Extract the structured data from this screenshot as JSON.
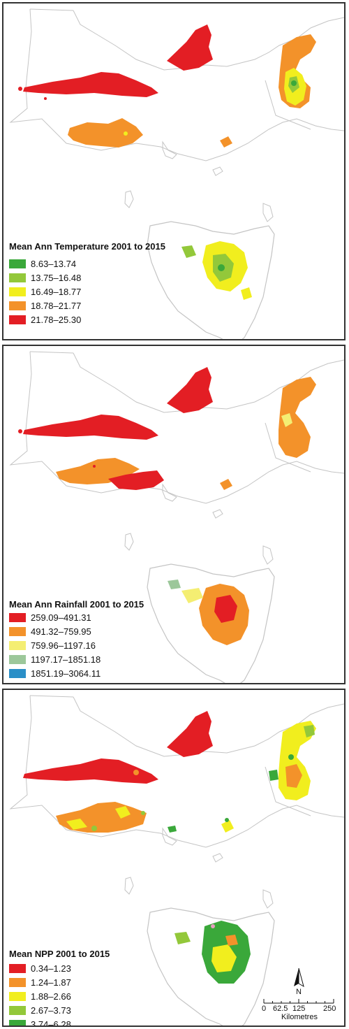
{
  "colors": {
    "outline": "#b9b9b9",
    "temperature": [
      "#3aa83a",
      "#93c83a",
      "#f1ee1e",
      "#f3922a",
      "#e31e24"
    ],
    "rainfall": [
      "#e31e24",
      "#f3922a",
      "#f4ee72",
      "#9cc79a",
      "#2a8fc7"
    ],
    "npp": [
      "#e31e24",
      "#f3922a",
      "#f1ee1e",
      "#93c83a",
      "#3aa83a"
    ]
  },
  "panels": [
    {
      "legend": {
        "title": "Mean Ann Temperature 2001 to 2015",
        "classes": [
          "8.63–13.74",
          "13.75–16.48",
          "16.49–18.77",
          "18.78–21.77",
          "21.78–25.30"
        ]
      }
    },
    {
      "legend": {
        "title": "Mean Ann Rainfall 2001 to 2015",
        "classes": [
          "259.09–491.31",
          "491.32–759.95",
          "759.96–1197.16",
          "1197.17–1851.18",
          "1851.19–3064.11"
        ]
      }
    },
    {
      "legend": {
        "title": "Mean NPP 2001 to 2015",
        "classes": [
          "0.34–1.23",
          "1.24–1.87",
          "1.88–2.66",
          "2.67–3.73",
          "3.74–6.28"
        ]
      }
    }
  ],
  "scale_bar": {
    "ticks": [
      "0",
      "62.5",
      "125",
      "250"
    ],
    "unit": "Kilometres",
    "north": "N"
  }
}
